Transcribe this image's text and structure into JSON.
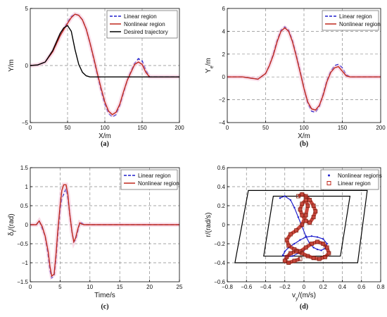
{
  "chart_data": [
    {
      "id": "a",
      "type": "line",
      "caption": "(a)",
      "xlabel": "X/m",
      "ylabel": "Y/m",
      "xlim": [
        0,
        200
      ],
      "ylim": [
        -5,
        5
      ],
      "xticks": [
        0,
        50,
        100,
        150,
        200
      ],
      "yticks": [
        -5,
        0,
        5
      ],
      "grid": true,
      "legend_position": "top-right",
      "series": [
        {
          "name": "Linear region",
          "color": "#1f1fcc",
          "style": "dashed",
          "x": [
            0,
            10,
            20,
            30,
            40,
            50,
            55,
            60,
            65,
            70,
            75,
            80,
            85,
            90,
            95,
            100,
            105,
            110,
            115,
            120,
            125,
            130,
            135,
            140,
            145,
            150,
            155,
            160,
            200
          ],
          "y": [
            0,
            0.05,
            0.3,
            1.2,
            2.6,
            3.8,
            4.3,
            4.5,
            4.4,
            4.0,
            3.2,
            2.0,
            0.6,
            -0.8,
            -2.2,
            -3.4,
            -4.2,
            -4.5,
            -4.3,
            -3.5,
            -2.4,
            -1.3,
            -0.5,
            0.2,
            0.6,
            0.4,
            -0.4,
            -1.0,
            -1.0
          ]
        },
        {
          "name": "Nonlinear region",
          "color": "#c0281c",
          "style": "solid",
          "x": [
            0,
            10,
            20,
            30,
            40,
            50,
            55,
            60,
            65,
            70,
            75,
            80,
            85,
            90,
            95,
            100,
            105,
            110,
            115,
            120,
            125,
            130,
            135,
            140,
            145,
            150,
            155,
            160,
            200
          ],
          "y": [
            0,
            0.05,
            0.3,
            1.2,
            2.6,
            3.7,
            4.2,
            4.5,
            4.4,
            4.0,
            3.2,
            2.0,
            0.7,
            -0.7,
            -2.0,
            -3.2,
            -4.0,
            -4.3,
            -4.1,
            -3.4,
            -2.3,
            -1.3,
            -0.6,
            0.1,
            0.3,
            0.1,
            -0.6,
            -1.0,
            -1.0
          ]
        },
        {
          "name": "Desired trajectory",
          "color": "#000000",
          "style": "solid",
          "x": [
            0,
            10,
            20,
            30,
            40,
            45,
            50,
            55,
            60,
            65,
            70,
            75,
            80,
            90,
            100,
            200
          ],
          "y": [
            0,
            0.05,
            0.3,
            1.3,
            2.8,
            3.3,
            3.5,
            3.0,
            1.4,
            0.1,
            -0.6,
            -0.9,
            -1.0,
            -1.0,
            -1.0,
            -1.0
          ]
        }
      ]
    },
    {
      "id": "b",
      "type": "line",
      "caption": "(b)",
      "xlabel": "X/m",
      "ylabel": "Y",
      "ylabel_sub": "e",
      "ylabel_suffix": "/m",
      "xlim": [
        0,
        200
      ],
      "ylim": [
        -4,
        6
      ],
      "xticks": [
        0,
        50,
        100,
        150,
        200
      ],
      "yticks": [
        -4,
        -2,
        0,
        2,
        4,
        6
      ],
      "grid": true,
      "legend_position": "top-right",
      "series": [
        {
          "name": "Linear region",
          "color": "#1f1fcc",
          "style": "dashed",
          "x": [
            0,
            20,
            30,
            40,
            50,
            55,
            60,
            65,
            70,
            75,
            80,
            85,
            90,
            95,
            100,
            105,
            110,
            115,
            120,
            125,
            130,
            135,
            140,
            145,
            150,
            155,
            160,
            200
          ],
          "y": [
            0,
            0,
            -0.1,
            -0.2,
            0.3,
            1.0,
            2.0,
            3.2,
            4.1,
            4.4,
            4.1,
            3.2,
            1.9,
            0.5,
            -1.0,
            -2.3,
            -3.0,
            -3.1,
            -2.6,
            -1.5,
            -0.3,
            0.5,
            1.0,
            1.1,
            0.8,
            0.2,
            0,
            0
          ]
        },
        {
          "name": "Nonlinear region",
          "color": "#c0281c",
          "style": "solid",
          "x": [
            0,
            20,
            30,
            40,
            50,
            55,
            60,
            65,
            70,
            75,
            80,
            85,
            90,
            95,
            100,
            105,
            110,
            115,
            120,
            125,
            130,
            135,
            140,
            145,
            150,
            155,
            160,
            200
          ],
          "y": [
            0,
            0,
            -0.1,
            -0.2,
            0.3,
            1.0,
            1.9,
            3.1,
            4.0,
            4.3,
            4.0,
            3.1,
            1.8,
            0.4,
            -1.0,
            -2.2,
            -2.8,
            -2.9,
            -2.5,
            -1.6,
            -0.4,
            0.4,
            0.8,
            0.9,
            0.5,
            0.1,
            0,
            0
          ]
        }
      ]
    },
    {
      "id": "c",
      "type": "line",
      "caption": "(c)",
      "xlabel": "Time/s",
      "ylabel": "δ",
      "ylabel_sub": "f",
      "ylabel_suffix": "/(rad)",
      "xlim": [
        0,
        25
      ],
      "ylim": [
        -1.5,
        1.5
      ],
      "xticks": [
        0,
        5,
        10,
        15,
        20,
        25
      ],
      "yticks": [
        -1.5,
        -1,
        -0.5,
        0,
        0.5,
        1,
        1.5
      ],
      "grid": true,
      "legend_position": "top-right",
      "series": [
        {
          "name": "Linear region",
          "color": "#1f1fcc",
          "style": "dashed",
          "x": [
            0,
            1,
            1.5,
            2,
            2.5,
            3,
            3.3,
            3.6,
            4,
            4.3,
            4.6,
            5,
            5.3,
            5.6,
            6,
            6.3,
            6.6,
            7,
            7.3,
            7.6,
            8,
            8.3,
            8.6,
            9,
            9.3,
            10,
            25
          ],
          "y": [
            0,
            0,
            0.1,
            -0.1,
            -0.3,
            -0.8,
            -1.2,
            -1.4,
            -1.35,
            -0.9,
            -0.3,
            0.4,
            0.7,
            0.8,
            0.95,
            0.7,
            0.3,
            -0.2,
            -0.45,
            -0.4,
            -0.15,
            0.05,
            0.05,
            0,
            0,
            0,
            0
          ]
        },
        {
          "name": "Nonlinear region",
          "color": "#c0281c",
          "style": "solid",
          "x": [
            0,
            1,
            1.5,
            2,
            2.5,
            3,
            3.3,
            3.6,
            4,
            4.3,
            4.6,
            5,
            5.3,
            5.6,
            6,
            6.3,
            6.6,
            7,
            7.3,
            7.6,
            8,
            8.3,
            8.6,
            9,
            9.3,
            10,
            25
          ],
          "y": [
            0,
            0,
            0.1,
            -0.05,
            -0.3,
            -0.7,
            -1.1,
            -1.35,
            -1.3,
            -0.8,
            -0.2,
            0.5,
            0.9,
            1.05,
            1.05,
            0.8,
            0.3,
            -0.2,
            -0.45,
            -0.35,
            -0.1,
            0.05,
            0.02,
            0,
            0,
            0,
            0
          ]
        }
      ]
    },
    {
      "id": "d",
      "type": "scatter",
      "caption": "(d)",
      "xlabel": "v",
      "xlabel_sub": "y",
      "xlabel_suffix": "/(m/s)",
      "ylabel": "r/(rad/s)",
      "xlim": [
        -0.8,
        0.8
      ],
      "ylim": [
        -0.6,
        0.6
      ],
      "xticks": [
        -0.8,
        -0.6,
        -0.4,
        -0.2,
        0,
        0.2,
        0.4,
        0.6,
        0.8
      ],
      "yticks": [
        -0.6,
        -0.4,
        -0.2,
        0,
        0.2,
        0.4,
        0.6
      ],
      "grid": true,
      "legend_position": "top-right",
      "regions": [
        {
          "color": "#000000",
          "points": [
            [
              -0.58,
              0.36
            ],
            [
              0.66,
              0.36
            ],
            [
              0.56,
              -0.4
            ],
            [
              -0.72,
              -0.4
            ]
          ]
        },
        {
          "color": "#000000",
          "points": [
            [
              -0.32,
              0.3
            ],
            [
              0.48,
              0.3
            ],
            [
              0.38,
              -0.33
            ],
            [
              -0.42,
              -0.33
            ]
          ]
        }
      ],
      "series": [
        {
          "name": "Nonlinear regions",
          "color": "#1f1fcc",
          "marker": "dot",
          "x": [
            -0.25,
            -0.2,
            -0.14,
            -0.1,
            -0.06,
            -0.02,
            0.02,
            0.06,
            0.1,
            0.14,
            0.18,
            0.22,
            0.24,
            0.2,
            0.14,
            0.08,
            0.02,
            -0.04,
            -0.1,
            -0.16,
            -0.2,
            -0.22,
            -0.18,
            -0.12,
            -0.06,
            0
          ],
          "y": [
            0.28,
            0.3,
            0.26,
            0.18,
            0.08,
            -0.02,
            -0.12,
            -0.2,
            -0.24,
            -0.26,
            -0.27,
            -0.25,
            -0.2,
            -0.15,
            -0.13,
            -0.12,
            -0.13,
            -0.16,
            -0.2,
            -0.24,
            -0.28,
            -0.32,
            -0.34,
            -0.33,
            -0.3,
            -0.27
          ]
        },
        {
          "name": "Linear region",
          "color": "#c0281c",
          "marker": "square",
          "x": [
            -0.06,
            -0.02,
            0.02,
            0.06,
            0.1,
            0.12,
            0.1,
            0.06,
            0.02,
            -0.02,
            -0.04,
            -0.02,
            0.02,
            0.04,
            0.02,
            -0.02,
            -0.08,
            -0.14,
            -0.18,
            -0.16,
            -0.1,
            -0.04,
            0.02,
            0.08,
            0.14,
            0.2,
            0.24,
            0.26,
            0.22,
            0.16,
            0.1,
            0.04,
            -0.02,
            -0.08,
            -0.14,
            -0.18,
            -0.2,
            -0.16,
            -0.1,
            -0.04
          ],
          "y": [
            0.3,
            0.32,
            0.3,
            0.26,
            0.2,
            0.14,
            0.08,
            0.02,
            0.04,
            0.1,
            0.16,
            0.22,
            0.26,
            0.2,
            0.1,
            0.0,
            -0.06,
            -0.1,
            -0.16,
            -0.22,
            -0.26,
            -0.28,
            -0.24,
            -0.2,
            -0.18,
            -0.2,
            -0.24,
            -0.3,
            -0.34,
            -0.36,
            -0.35,
            -0.33,
            -0.3,
            -0.28,
            -0.3,
            -0.34,
            -0.38,
            -0.4,
            -0.38,
            -0.36
          ]
        }
      ]
    }
  ]
}
